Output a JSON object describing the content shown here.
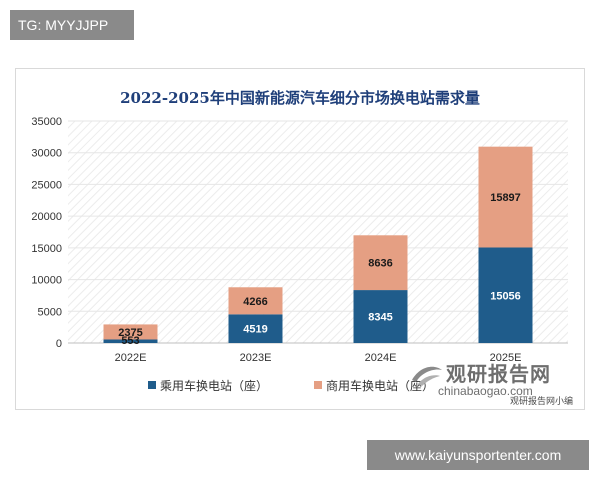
{
  "overlay": {
    "tag_text": "TG: MYYJJPP",
    "url_text": "www.kaiyunsportenter.com"
  },
  "watermark": {
    "cn_text": "观研报告网",
    "en_text": "chinabaogao.com",
    "sub_text": "观研报告网小编"
  },
  "colors": {
    "passenger": "#1f5c8b",
    "commercial": "#e59f83",
    "grid": "#e6e6e6",
    "title": "#1f3f7a"
  },
  "chart_data": {
    "type": "bar",
    "stacked": true,
    "title": "2022-2025年中国新能源汽车细分市场换电站需求量",
    "xlabel": "",
    "ylabel": "",
    "categories": [
      "2022E",
      "2023E",
      "2024E",
      "2025E"
    ],
    "series": [
      {
        "name": "乘用车换电站（座）",
        "values": [
          553,
          4519,
          8345,
          15056
        ]
      },
      {
        "name": "商用车换电站（座）",
        "values": [
          2375,
          4266,
          8636,
          15897
        ]
      }
    ],
    "ylim": [
      0,
      35000
    ],
    "yticks": [
      0,
      5000,
      10000,
      15000,
      20000,
      25000,
      30000,
      35000
    ],
    "legend": "bottom",
    "grid": true
  }
}
